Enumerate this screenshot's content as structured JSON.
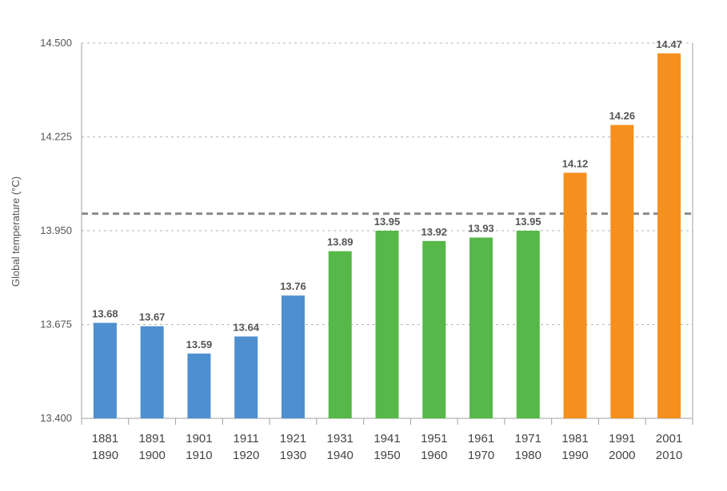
{
  "chart_data": {
    "type": "bar",
    "ylabel": "Global temperature (°C)",
    "ylim": [
      13.4,
      14.5
    ],
    "yticks": [
      "13.400",
      "13.675",
      "13.950",
      "14.225",
      "14.500"
    ],
    "ytick_values": [
      13.4,
      13.675,
      13.95,
      14.225,
      14.5
    ],
    "grid": true,
    "reference_line": 14.0,
    "categories": [
      [
        "1881",
        "1890"
      ],
      [
        "1891",
        "1900"
      ],
      [
        "1901",
        "1910"
      ],
      [
        "1911",
        "1920"
      ],
      [
        "1921",
        "1930"
      ],
      [
        "1931",
        "1940"
      ],
      [
        "1941",
        "1950"
      ],
      [
        "1951",
        "1960"
      ],
      [
        "1961",
        "1970"
      ],
      [
        "1971",
        "1980"
      ],
      [
        "1981",
        "1990"
      ],
      [
        "1991",
        "2000"
      ],
      [
        "2001",
        "2010"
      ]
    ],
    "values": [
      13.68,
      13.67,
      13.59,
      13.64,
      13.76,
      13.89,
      13.95,
      13.92,
      13.93,
      13.95,
      14.12,
      14.26,
      14.47
    ],
    "value_labels": [
      "13.68",
      "13.67",
      "13.59",
      "13.64",
      "13.76",
      "13.89",
      "13.95",
      "13.92",
      "13.93",
      "13.95",
      "14.12",
      "14.26",
      "14.47"
    ],
    "bar_colors": [
      "#4e8fcf",
      "#4e8fcf",
      "#4e8fcf",
      "#4e8fcf",
      "#4e8fcf",
      "#55b848",
      "#55b848",
      "#55b848",
      "#55b848",
      "#55b848",
      "#f5901e",
      "#f5901e",
      "#f5901e"
    ],
    "colors": {
      "grid": "#b5b5b5",
      "axis": "#a0a0a0",
      "reference": "#8a8a8a"
    }
  }
}
